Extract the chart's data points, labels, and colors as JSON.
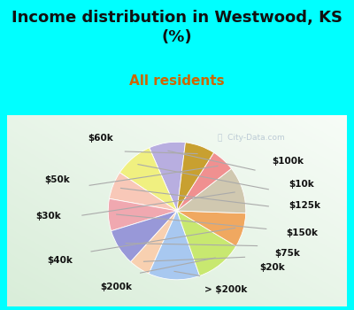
{
  "title": "Income distribution in Westwood, KS\n(%)",
  "subtitle": "All residents",
  "background_color": "#00FFFF",
  "labels": [
    "$100k",
    "$10k",
    "$125k",
    "$150k",
    "$75k",
    "$20k",
    "> $200k",
    "$200k",
    "$40k",
    "$30k",
    "$50k",
    "$60k"
  ],
  "sizes": [
    8.5,
    9.0,
    6.5,
    7.5,
    8.5,
    5.0,
    12.0,
    11.0,
    8.0,
    11.0,
    5.5,
    7.0
  ],
  "colors": [
    "#b8aee0",
    "#f0f080",
    "#f8c8b8",
    "#f0a8b0",
    "#9898d8",
    "#f8d0b0",
    "#a8c8f0",
    "#c8e870",
    "#f0a860",
    "#d0c8b0",
    "#f09090",
    "#c8a030"
  ],
  "startangle": 83,
  "title_fontsize": 13,
  "subtitle_fontsize": 11,
  "subtitle_color": "#cc6600",
  "title_color": "#111111",
  "label_fontsize": 7.5,
  "watermark": "  City-Data.com"
}
